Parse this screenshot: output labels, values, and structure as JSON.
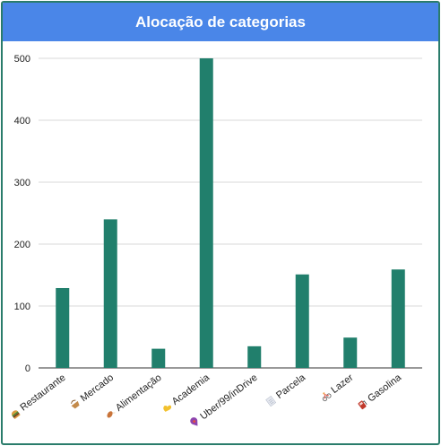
{
  "header": {
    "title": "Alocação de categorias"
  },
  "colors": {
    "header_bg": "#4a86e8",
    "border": "#2a7c6b",
    "bar": "#217f6c",
    "grid": "#d9d9d9"
  },
  "chart_data": {
    "type": "bar",
    "title": "Alocação de categorias",
    "xlabel": "",
    "ylabel": "",
    "ylim": [
      0,
      500
    ],
    "yticks": [
      0,
      100,
      200,
      300,
      400,
      500
    ],
    "grid": true,
    "categories": [
      {
        "icon": "burger-icon",
        "label": "Restaurante"
      },
      {
        "icon": "shopping-basket-icon",
        "label": "Mercado"
      },
      {
        "icon": "drumstick-icon",
        "label": "Alimentação"
      },
      {
        "icon": "flexed-arm-icon",
        "label": "Academia"
      },
      {
        "icon": "map-pin-icon",
        "label": "Uber/99/inDrive"
      },
      {
        "icon": "document-icon",
        "label": "Parcela"
      },
      {
        "icon": "bicycle-icon",
        "label": "Lazer"
      },
      {
        "icon": "fuel-pump-icon",
        "label": "Gasolina"
      }
    ],
    "values": [
      129,
      240,
      31,
      500,
      35,
      151,
      49,
      159
    ]
  }
}
